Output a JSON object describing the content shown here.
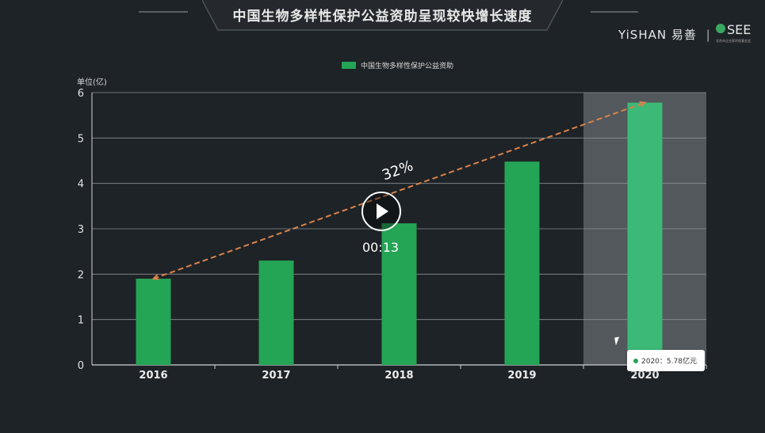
{
  "title": "中国生物多样性保护公益资助呈现较快增长速度",
  "logos": {
    "yishan": "YiSHAN",
    "yishan_cn": "易善",
    "see": "SEE",
    "see_sub": "北京市企业家环保基金会"
  },
  "video": {
    "time": "00:13",
    "play_icon": "play-icon"
  },
  "tooltip": {
    "text": "2020：5.78亿元"
  },
  "chart_data": {
    "type": "bar",
    "title": "中国生物多样性保护公益资助呈现较快增长速度",
    "legend": [
      {
        "name": "中国生物多样性保护公益资助",
        "color": "#24a455"
      }
    ],
    "ylabel": "单位(亿)",
    "categories": [
      "2016",
      "2017",
      "2018",
      "2019",
      "2020"
    ],
    "values": [
      1.9,
      2.3,
      3.12,
      4.48,
      5.78
    ],
    "ylim": [
      0,
      6
    ],
    "yticks": [
      0,
      1,
      2,
      3,
      4,
      5,
      6
    ],
    "grid": true,
    "highlighted_category": "2020",
    "annotation": {
      "text": "32%",
      "type": "trend-arrow",
      "from_category": "2016",
      "to_category": "2020",
      "color": "#d9824a"
    },
    "colors": {
      "bar": "#24a455",
      "bar_highlight": "#3cb877",
      "highlight_band": "#5c6166"
    }
  }
}
